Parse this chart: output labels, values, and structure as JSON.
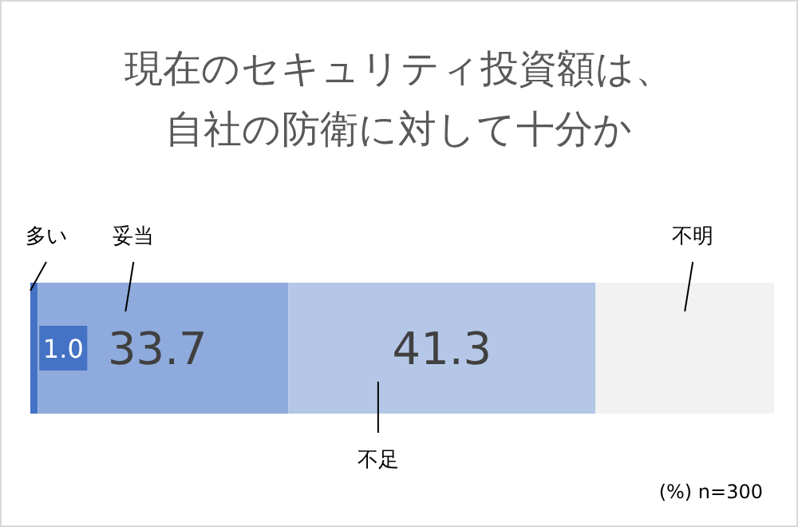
{
  "chart_data": {
    "type": "bar",
    "orientation": "horizontal",
    "stacked": true,
    "title": "現在のセキュリティ投資額は、自社の防衛に対して十分か",
    "categories": [
      null
    ],
    "xlim": [
      0,
      100
    ],
    "tick_labels": false,
    "series": [
      {
        "name": "多い",
        "color": "#4472c4",
        "values": [
          1.0
        ],
        "value_labels": [
          "1.0"
        ]
      },
      {
        "name": "妥当",
        "color": "#8faadc",
        "values": [
          33.7
        ],
        "value_labels": [
          "33.7"
        ]
      },
      {
        "name": "不足",
        "color": "#b4c7e7",
        "values": [
          41.3
        ],
        "value_labels": [
          "41.3"
        ]
      },
      {
        "name": "不明",
        "color": "#f2f2f2",
        "values": [
          24.0
        ],
        "value_labels": [
          null
        ]
      }
    ],
    "annotations": [
      "(%) n=300"
    ]
  }
}
